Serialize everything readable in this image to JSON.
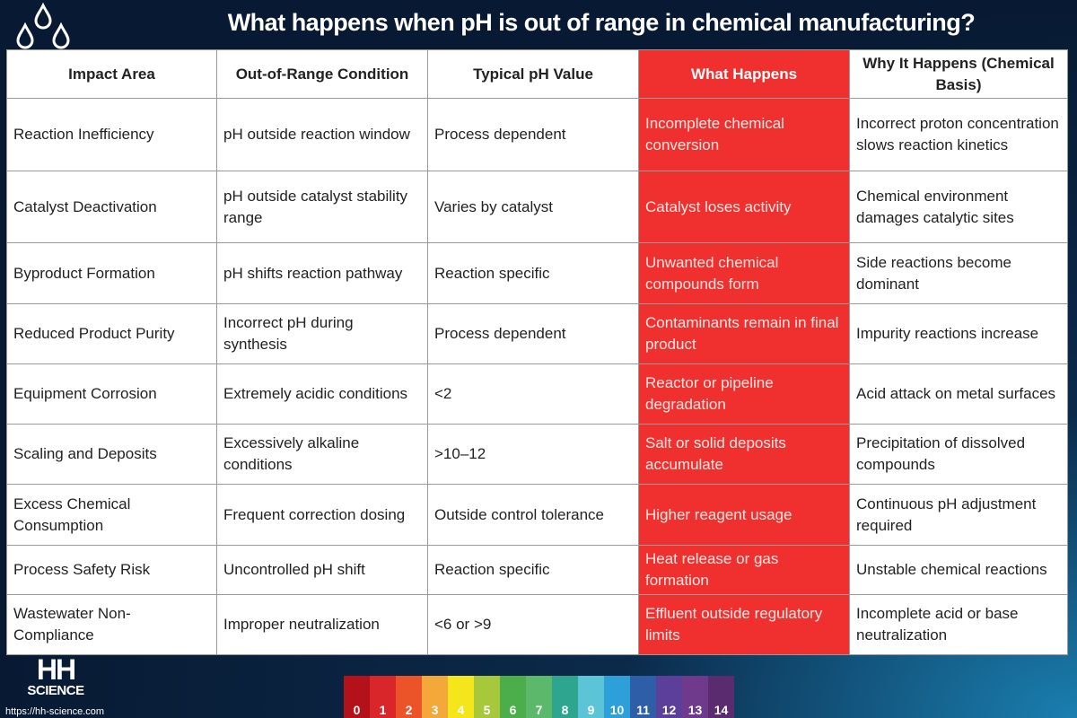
{
  "title": "What happens when pH is out of range in chemical manufacturing?",
  "table": {
    "header": [
      "Impact Area",
      "Out-of-Range Condition",
      "Typical pH Value",
      "What Happens",
      "Why It Happens (Chemical Basis)"
    ],
    "rows": [
      [
        "Reaction Inefficiency",
        "pH outside reaction window",
        "Process dependent",
        "Incomplete chemical conversion",
        "Incorrect proton concentration slows reaction kinetics"
      ],
      [
        "Catalyst Deactivation",
        "pH outside catalyst stability range",
        "Varies by catalyst",
        "Catalyst loses activity",
        "Chemical environment damages catalytic sites"
      ],
      [
        "Byproduct Formation",
        "pH shifts reaction pathway",
        "Reaction specific",
        "Unwanted chemical compounds form",
        "Side reactions become dominant"
      ],
      [
        "Reduced Product Purity",
        "Incorrect pH during synthesis",
        "Process dependent",
        "Contaminants remain in final product",
        "Impurity reactions increase"
      ],
      [
        "Equipment Corrosion",
        "Extremely acidic conditions",
        "<2",
        "Reactor or pipeline degradation",
        "Acid attack on metal surfaces"
      ],
      [
        "Scaling and Deposits",
        "Excessively alkaline conditions",
        ">10–12",
        "Salt or solid deposits accumulate",
        "Precipitation of dissolved compounds"
      ],
      [
        "Excess Chemical Consumption",
        "Frequent correction dosing",
        "Outside control tolerance",
        "Higher reagent usage",
        "Continuous pH adjustment required"
      ],
      [
        "Process Safety Risk",
        "Uncontrolled pH shift",
        "Reaction specific",
        "Heat release or gas formation",
        "Unstable chemical reactions"
      ],
      [
        "Wastewater Non-Compliance",
        "Improper neutralization",
        "<6 or >9",
        "Effluent outside regulatory limits",
        "Incomplete acid or base neutralization"
      ]
    ]
  },
  "logo": {
    "line1": "HH",
    "line2": "SCIENCE"
  },
  "url": "https://hh-science.com",
  "ph_scale": [
    0,
    1,
    2,
    3,
    4,
    5,
    6,
    7,
    8,
    9,
    10,
    11,
    12,
    13,
    14
  ]
}
